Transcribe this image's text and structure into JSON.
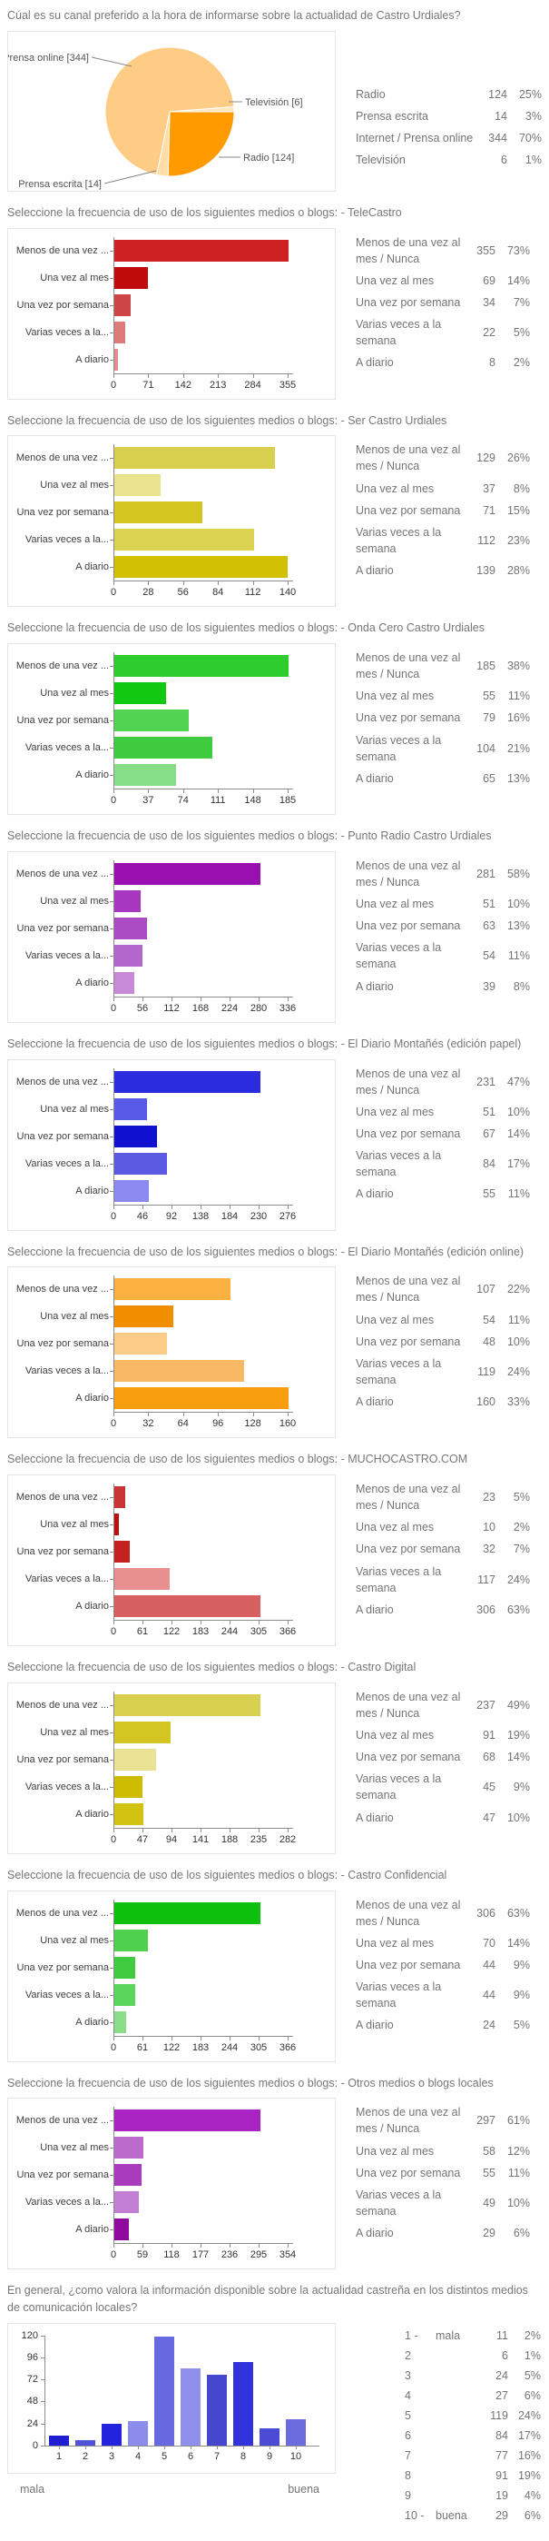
{
  "shared": {
    "bar_category_labels": [
      "Menos de una vez ...",
      "Una vez al mes",
      "Una vez por semana",
      "Varias veces a la...",
      "A diario"
    ],
    "table_labels": [
      "Menos de una vez al mes / Nunca",
      "Una vez al mes",
      "Una vez por semana",
      "Varias veces a la semana",
      "A diario"
    ]
  },
  "chart_data": [
    {
      "id": "canal-preferido",
      "type": "pie",
      "title": "Cúal es su canal preferido a la hora de informarse sobre la actualidad de Castro Urdiales?",
      "slices": [
        {
          "label": "Radio [124]",
          "name": "Radio",
          "value": 124,
          "pct": "25%",
          "color": "#ff9a00"
        },
        {
          "label": "Prensa escrita [14]",
          "name": "Prensa escrita",
          "value": 14,
          "pct": "3%",
          "color": "#ffdda6"
        },
        {
          "label": "Prensa online [344]",
          "name": "Internet / Prensa online",
          "value": 344,
          "pct": "70%",
          "color": "#ffcc85"
        },
        {
          "label": "Televisión [6]",
          "name": "Televisión",
          "value": 6,
          "pct": "1%",
          "color": "#ffe6bd"
        }
      ],
      "table": [
        {
          "label": "Radio",
          "value": 124,
          "pct": "25%"
        },
        {
          "label": "Prensa escrita",
          "value": 14,
          "pct": "3%"
        },
        {
          "label": "Internet / Prensa online",
          "value": 344,
          "pct": "70%"
        },
        {
          "label": "Televisión",
          "value": 6,
          "pct": "1%"
        }
      ]
    },
    {
      "id": "telecastro",
      "type": "bar",
      "orientation": "horizontal",
      "title": "Seleccione la frecuencia de uso de los siguientes medios o blogs: - TeleCastro",
      "values": [
        355,
        69,
        34,
        22,
        8
      ],
      "pcts": [
        "73%",
        "14%",
        "7%",
        "5%",
        "2%"
      ],
      "ticks": [
        0,
        71,
        142,
        213,
        284,
        355
      ],
      "colors": [
        "#cc2222",
        "#c00b0b",
        "#cc4646",
        "#dd7b7b",
        "#e28b8b"
      ]
    },
    {
      "id": "ser-castro-urdiales",
      "type": "bar",
      "orientation": "horizontal",
      "title": "Seleccione la frecuencia de uso de los siguientes medios o blogs: - Ser Castro Urdiales",
      "values": [
        129,
        37,
        71,
        112,
        139
      ],
      "pcts": [
        "26%",
        "8%",
        "15%",
        "23%",
        "28%"
      ],
      "ticks": [
        0,
        28,
        56,
        84,
        112,
        140
      ],
      "colors": [
        "#d9cf4e",
        "#eae28d",
        "#d5c521",
        "#dcd251",
        "#d2c103"
      ]
    },
    {
      "id": "onda-cero-castro-urdiales",
      "type": "bar",
      "orientation": "horizontal",
      "title": "Seleccione la frecuencia de uso de los siguientes medios o blogs: - Onda Cero Castro Urdiales",
      "values": [
        185,
        55,
        79,
        104,
        65
      ],
      "pcts": [
        "38%",
        "11%",
        "16%",
        "21%",
        "13%"
      ],
      "ticks": [
        0,
        37,
        74,
        111,
        148,
        185
      ],
      "colors": [
        "#2ecc2e",
        "#12c912",
        "#52d452",
        "#3ecc3e",
        "#86de86"
      ]
    },
    {
      "id": "punto-radio-castro-urdiales",
      "type": "bar",
      "orientation": "horizontal",
      "title": "Seleccione la frecuencia de uso de los siguientes medios o blogs: - Punto Radio Castro Urdiales",
      "values": [
        281,
        51,
        63,
        54,
        39
      ],
      "pcts": [
        "58%",
        "10%",
        "13%",
        "11%",
        "8%"
      ],
      "ticks": [
        0,
        56,
        112,
        168,
        224,
        280,
        336
      ],
      "colors": [
        "#990fb0",
        "#a737bf",
        "#aa4cc4",
        "#b366cb",
        "#c68ad9"
      ]
    },
    {
      "id": "diario-montanes-papel",
      "type": "bar",
      "orientation": "horizontal",
      "title": "Seleccione la frecuencia de uso de los siguientes medios o blogs: - El Diario Montañés (edición papel)",
      "values": [
        231,
        51,
        67,
        84,
        55
      ],
      "pcts": [
        "47%",
        "10%",
        "14%",
        "17%",
        "11%"
      ],
      "ticks": [
        0,
        46,
        92,
        138,
        184,
        230,
        276
      ],
      "colors": [
        "#2b2bdf",
        "#5959e8",
        "#1010d0",
        "#5a5ae2",
        "#8a8af0"
      ]
    },
    {
      "id": "diario-montanes-online",
      "type": "bar",
      "orientation": "horizontal",
      "title": "Seleccione la frecuencia de uso de los siguientes medios o blogs: - El Diario Montañés (edición online)",
      "values": [
        107,
        54,
        48,
        119,
        160
      ],
      "pcts": [
        "22%",
        "11%",
        "10%",
        "24%",
        "33%"
      ],
      "ticks": [
        0,
        32,
        64,
        96,
        128,
        160
      ],
      "colors": [
        "#fbb040",
        "#f08e00",
        "#fccb87",
        "#f9b863",
        "#f89e0e"
      ]
    },
    {
      "id": "muchocastro-com",
      "type": "bar",
      "orientation": "horizontal",
      "title": "Seleccione la frecuencia de uso de los siguientes medios o blogs: - MUCHOCASTRO.COM",
      "values": [
        23,
        10,
        32,
        117,
        306
      ],
      "pcts": [
        "5%",
        "2%",
        "7%",
        "24%",
        "63%"
      ],
      "ticks": [
        0,
        61,
        122,
        183,
        244,
        305,
        366
      ],
      "colors": [
        "#ca3333",
        "#bc0f0f",
        "#c32020",
        "#e89090",
        "#d66060"
      ]
    },
    {
      "id": "castro-digital",
      "type": "bar",
      "orientation": "horizontal",
      "title": "Seleccione la frecuencia de uso de los siguientes medios o blogs: - Castro Digital",
      "values": [
        237,
        91,
        68,
        45,
        47
      ],
      "pcts": [
        "49%",
        "19%",
        "14%",
        "9%",
        "10%"
      ],
      "ticks": [
        0,
        47,
        94,
        141,
        188,
        235,
        282
      ],
      "colors": [
        "#d9d04f",
        "#d3c623",
        "#eae294",
        "#ccbb00",
        "#d2c312"
      ]
    },
    {
      "id": "castro-confidencial",
      "type": "bar",
      "orientation": "horizontal",
      "title": "Seleccione la frecuencia de uso de los siguientes medios o blogs: - Castro Confidencial",
      "values": [
        306,
        70,
        44,
        44,
        24
      ],
      "pcts": [
        "63%",
        "14%",
        "9%",
        "9%",
        "5%"
      ],
      "ticks": [
        0,
        61,
        122,
        183,
        244,
        305,
        366
      ],
      "colors": [
        "#0cc00c",
        "#4fd04f",
        "#3fcc3f",
        "#5bd65b",
        "#8ade8a"
      ]
    },
    {
      "id": "otros-medios-blogs-locales",
      "type": "bar",
      "orientation": "horizontal",
      "title": "Seleccione la frecuencia de uso de los siguientes medios o blogs: - Otros medios o blogs locales",
      "values": [
        297,
        58,
        55,
        49,
        29
      ],
      "pcts": [
        "61%",
        "12%",
        "11%",
        "10%",
        "6%"
      ],
      "ticks": [
        0,
        59,
        118,
        177,
        236,
        295,
        354
      ],
      "colors": [
        "#a922c2",
        "#bc6bcc",
        "#a93bbd",
        "#c27fd4",
        "#8e0a9e"
      ]
    },
    {
      "id": "valoracion-general",
      "type": "bar",
      "orientation": "vertical",
      "title": "En general, ¿como valora la información disponible sobre la actualidad castreña en los distintos medios de comunicación locales?",
      "categories": [
        "1",
        "2",
        "3",
        "4",
        "5",
        "6",
        "7",
        "8",
        "9",
        "10"
      ],
      "values": [
        11,
        6,
        24,
        27,
        119,
        84,
        77,
        91,
        19,
        29
      ],
      "pcts": [
        "2%",
        "1%",
        "5%",
        "6%",
        "24%",
        "17%",
        "16%",
        "19%",
        "4%",
        "6%"
      ],
      "yticks": [
        0,
        24,
        48,
        72,
        96,
        120
      ],
      "axis_left_label": "mala",
      "axis_right_label": "buena",
      "table_labels": [
        "1 -",
        "2",
        "3",
        "4",
        "5",
        "6",
        "7",
        "8",
        "9",
        "10 -"
      ],
      "table_sublabels": [
        "mala",
        "",
        "",
        "",
        "",
        "",
        "",
        "",
        "",
        "buena"
      ],
      "colors": [
        "#1f1fd1",
        "#5252d9",
        "#2323dd",
        "#8c8cec",
        "#6868e0",
        "#8f8fec",
        "#4646cf",
        "#3232dd",
        "#4b4bd6",
        "#6c6cde"
      ]
    }
  ]
}
